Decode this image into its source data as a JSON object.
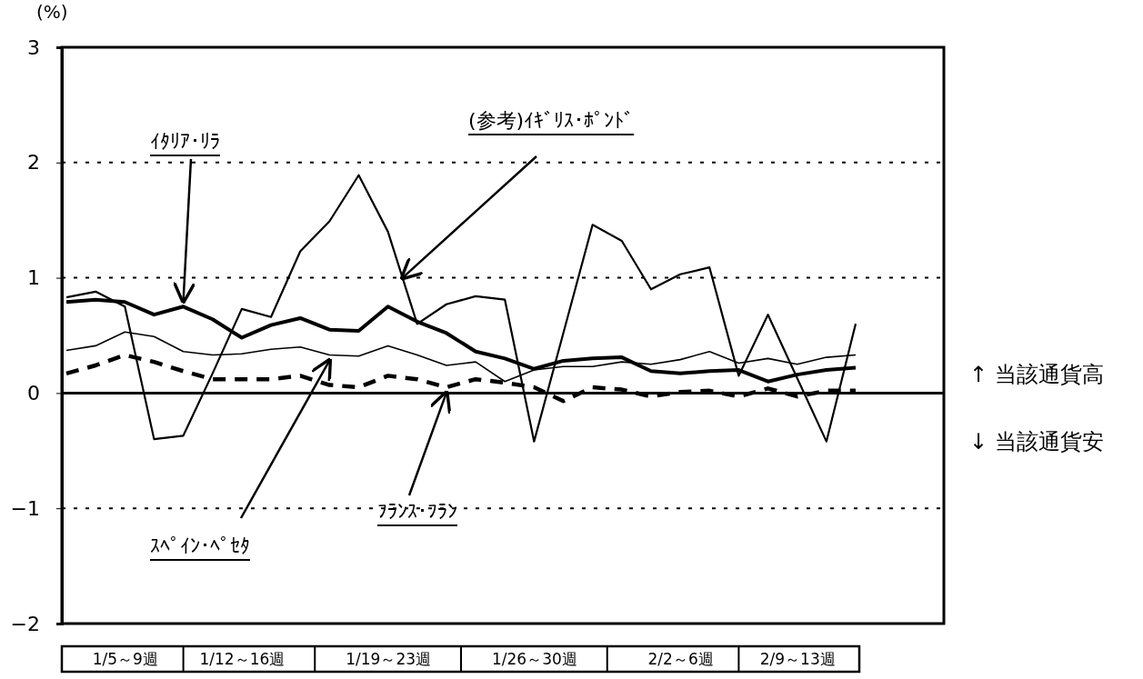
{
  "chart_data": {
    "type": "line",
    "ylabel": "(%)",
    "categories": [
      null,
      null,
      "1/5～9週",
      null,
      null,
      null,
      "1/12～16週",
      null,
      null,
      null,
      null,
      "1/19～23週",
      null,
      null,
      null,
      null,
      "1/26～30週",
      null,
      null,
      null,
      null,
      "2/2～6週",
      null,
      null,
      null,
      "2/9～13週",
      null,
      null
    ],
    "series": [
      {
        "name": "ｲﾀﾘｱ･ﾘﾗ",
        "color": "#000000",
        "line_style": "solid",
        "values": [
          0.79,
          0.81,
          0.79,
          0.68,
          0.75,
          0.64,
          0.48,
          0.59,
          0.65,
          0.55,
          0.54,
          0.75,
          0.62,
          0.52,
          0.36,
          0.3,
          0.21,
          0.28,
          0.3,
          0.31,
          0.19,
          0.17,
          0.19,
          0.2,
          0.1,
          0.16,
          0.2,
          0.22
        ]
      },
      {
        "name": "(参考)ｲｷﾞﾘｽ･ﾎﾟﾝﾄﾞ",
        "color": "#000000",
        "line_style": "solid",
        "values": [
          0.83,
          0.88,
          0.75,
          -0.4,
          -0.37,
          0.17,
          0.73,
          0.66,
          1.23,
          1.49,
          1.89,
          1.4,
          0.6,
          0.77,
          0.84,
          0.81,
          -0.42,
          0.52,
          1.46,
          1.32,
          0.9,
          1.03,
          1.09,
          0.15,
          0.68,
          0.13,
          -0.42,
          0.6
        ]
      },
      {
        "name": "ｽﾍﾟｲﾝ･ﾍﾟｾﾀ",
        "color": "#000000",
        "line_style": "solid",
        "values": [
          0.37,
          0.41,
          0.53,
          0.49,
          0.36,
          0.33,
          0.34,
          0.38,
          0.4,
          0.33,
          0.32,
          0.41,
          0.33,
          0.24,
          0.27,
          0.1,
          0.2,
          0.23,
          0.23,
          0.27,
          0.25,
          0.29,
          0.36,
          0.26,
          0.3,
          0.25,
          0.31,
          0.33
        ]
      },
      {
        "name": "ﾌﾗﾝｽ･ﾌﾗﾝ",
        "color": "#000000",
        "line_style": "dashed",
        "values": [
          0.17,
          0.24,
          0.33,
          0.27,
          0.19,
          0.12,
          0.12,
          0.12,
          0.15,
          0.07,
          0.05,
          0.15,
          0.12,
          0.05,
          0.12,
          0.09,
          0.05,
          -0.07,
          0.05,
          0.03,
          -0.03,
          0.01,
          0.02,
          -0.03,
          0.04,
          -0.03,
          0.02,
          0.02
        ]
      }
    ],
    "ylim": [
      -2,
      3
    ],
    "yticks": [
      -2,
      -1,
      0,
      1,
      2,
      3
    ],
    "ref_lines": [
      {
        "axis": "y",
        "value": 2,
        "line_style": "dotted",
        "color": "#000000"
      },
      {
        "axis": "y",
        "value": 1,
        "line_style": "dotted",
        "color": "#000000"
      },
      {
        "axis": "y",
        "value": 0,
        "line_style": "solid",
        "color": "#000000"
      },
      {
        "axis": "y",
        "value": -1,
        "line_style": "dotted",
        "color": "#000000"
      }
    ],
    "annotations": [
      "↑ 当該通貨高",
      "↓ 当該通貨安"
    ]
  }
}
